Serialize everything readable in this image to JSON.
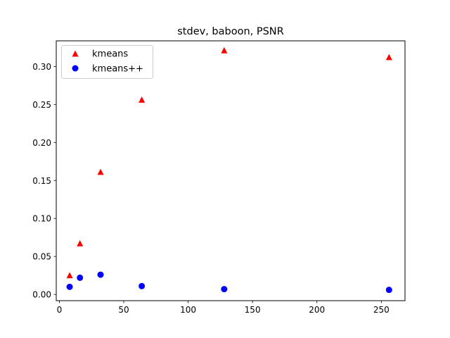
{
  "chart_data": {
    "type": "scatter",
    "title": "stdev, baboon, PSNR",
    "xlabel": "",
    "ylabel": "",
    "xlim": [
      -2.4,
      268.4
    ],
    "ylim": [
      -0.0082,
      0.3337
    ],
    "x_ticks": [
      0,
      50,
      100,
      150,
      200,
      250
    ],
    "x_tick_labels": [
      "0",
      "50",
      "100",
      "150",
      "200",
      "250"
    ],
    "y_ticks": [
      0.0,
      0.05,
      0.1,
      0.15,
      0.2,
      0.25,
      0.3
    ],
    "y_tick_labels": [
      "0.00",
      "0.05",
      "0.10",
      "0.15",
      "0.20",
      "0.25",
      "0.30"
    ],
    "grid": false,
    "legend_position": "upper-left",
    "series": [
      {
        "name": "kmeans",
        "marker": "triangle",
        "color": "#ff0000",
        "x": [
          8,
          16,
          32,
          64,
          128,
          256
        ],
        "y": [
          0.025,
          0.067,
          0.161,
          0.256,
          0.321,
          0.312
        ]
      },
      {
        "name": "kmeans++",
        "marker": "circle",
        "color": "#0000ff",
        "x": [
          8,
          16,
          32,
          64,
          128,
          256
        ],
        "y": [
          0.01,
          0.022,
          0.026,
          0.011,
          0.007,
          0.006
        ]
      }
    ]
  }
}
